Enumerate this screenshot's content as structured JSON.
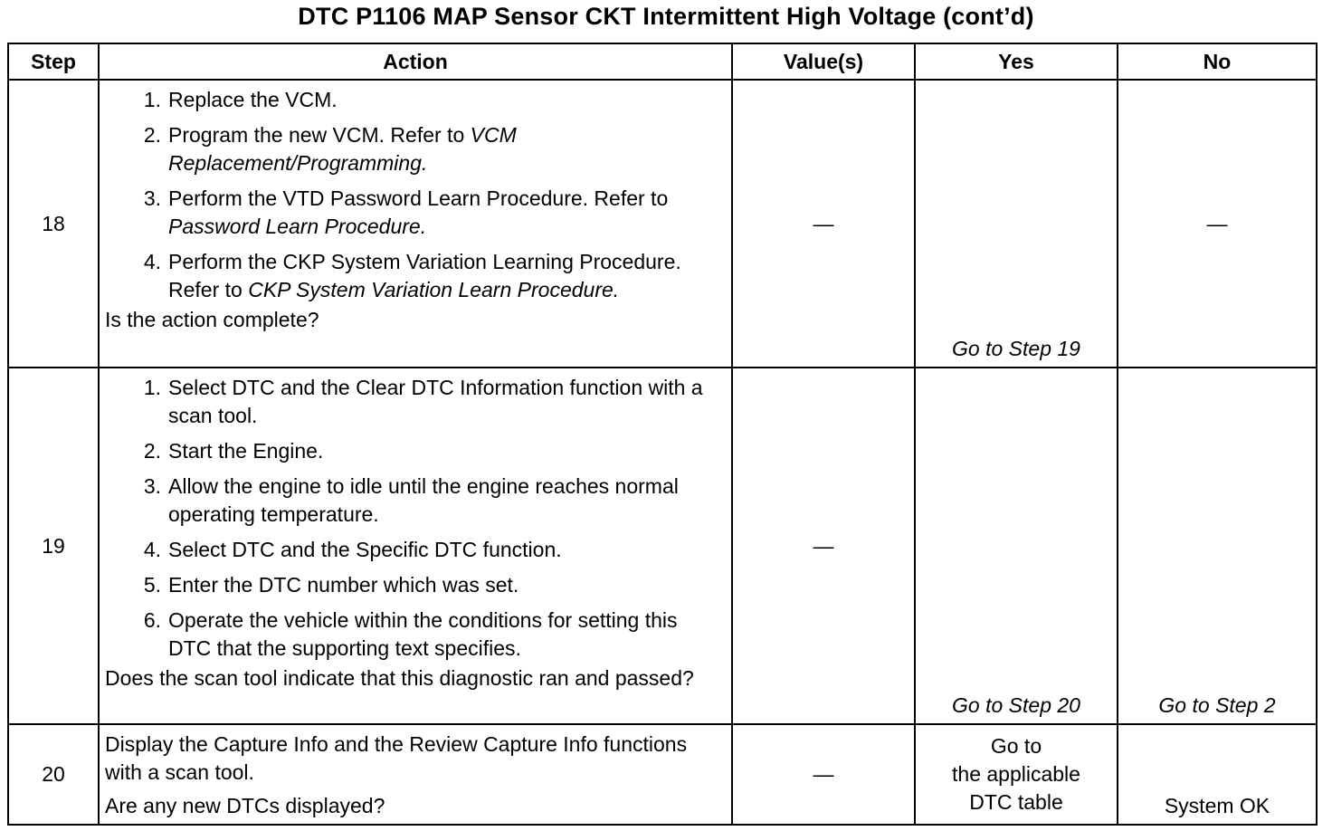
{
  "title": "DTC P1106 MAP Sensor CKT Intermittent High Voltage (cont’d)",
  "headers": {
    "step": "Step",
    "action": "Action",
    "values": "Value(s)",
    "yes": "Yes",
    "no": "No"
  },
  "rows": [
    {
      "step": "18",
      "items": [
        {
          "num": "1.",
          "text": "Replace the VCM.",
          "ref": ""
        },
        {
          "num": "2.",
          "text": "Program the new VCM. Refer to ",
          "ref": "VCM Replacement/Programming."
        },
        {
          "num": "3.",
          "text": "Perform the VTD Password Learn Procedure. Refer to ",
          "ref": "Password Learn Procedure."
        },
        {
          "num": "4.",
          "text": "Perform the CKP System Variation Learning Procedure. Refer to ",
          "ref": "CKP System Variation Learn Procedure."
        }
      ],
      "question": "Is the action complete?",
      "value": "—",
      "yes": "Go to Step 19",
      "no": "—"
    },
    {
      "step": "19",
      "items": [
        {
          "num": "1.",
          "text": "Select DTC and the Clear DTC Information function with a scan tool.",
          "ref": ""
        },
        {
          "num": "2.",
          "text": "Start the Engine.",
          "ref": ""
        },
        {
          "num": "3.",
          "text": "Allow the engine to idle until the engine reaches normal operating temperature.",
          "ref": ""
        },
        {
          "num": "4.",
          "text": "Select DTC and the Specific DTC function.",
          "ref": ""
        },
        {
          "num": "5.",
          "text": "Enter the DTC number which was set.",
          "ref": ""
        },
        {
          "num": "6.",
          "text": "Operate the vehicle within the conditions for setting this DTC that the supporting text specifies.",
          "ref": ""
        }
      ],
      "question": "Does the scan tool indicate that this diagnostic ran and passed?",
      "value": "—",
      "yes": "Go to Step 20",
      "no": "Go to Step 2"
    },
    {
      "step": "20",
      "intro": "Display the Capture Info and the Review Capture Info functions with a scan tool.",
      "question": "Are any new DTCs displayed?",
      "value": "—",
      "yes_line1": "Go to",
      "yes_line2": "the applicable",
      "yes_line3": "DTC table",
      "no": "System OK"
    }
  ]
}
